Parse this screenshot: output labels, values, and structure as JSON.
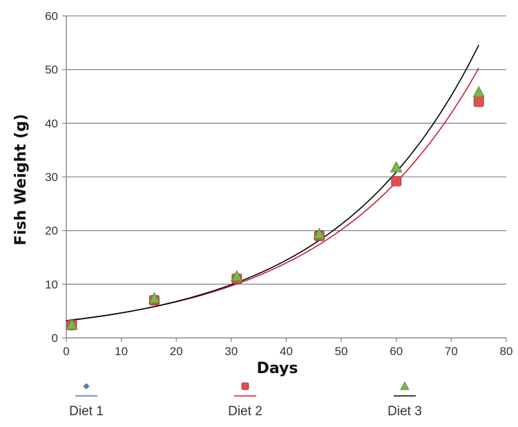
{
  "chart_data": {
    "type": "scatter",
    "title": "",
    "xlabel": "Days",
    "ylabel": "Fish Weight (g)",
    "xlim": [
      0,
      80
    ],
    "ylim": [
      0,
      60
    ],
    "x_ticks": [
      0,
      10,
      20,
      30,
      40,
      50,
      60,
      70,
      80
    ],
    "y_ticks": [
      0,
      10,
      20,
      30,
      40,
      50,
      60
    ],
    "grid": "horizontal",
    "legend_position": "bottom",
    "series": [
      {
        "name": "Diet 1",
        "marker": "diamond",
        "marker_color": "#4f81bd",
        "line_color": "#4f6fd0",
        "x": [
          1,
          16,
          31,
          46,
          60,
          75
        ],
        "y": [
          2.3,
          7.0,
          11.0,
          19.0,
          29.3,
          44.0
        ]
      },
      {
        "name": "Diet 2",
        "marker": "square",
        "marker_color": "#e0504f",
        "line_color": "#c0203a",
        "x": [
          1,
          16,
          31,
          46,
          60,
          75
        ],
        "y": [
          2.4,
          7.0,
          11.0,
          19.0,
          29.2,
          44.0
        ],
        "trend": {
          "type": "exponential",
          "a": 3.23,
          "b": 0.0366
        }
      },
      {
        "name": "Diet 3",
        "marker": "triangle",
        "marker_color": "#78b94a",
        "line_color": "#000000",
        "x": [
          1,
          16,
          31,
          46,
          60,
          75
        ],
        "y": [
          2.5,
          7.4,
          11.5,
          19.4,
          31.8,
          45.8
        ],
        "trend": {
          "type": "exponential",
          "a": 3.18,
          "b": 0.0379
        }
      }
    ]
  }
}
